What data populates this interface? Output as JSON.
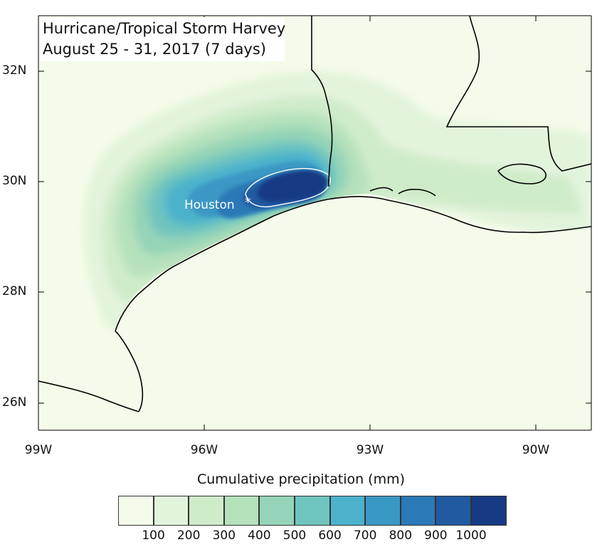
{
  "title": {
    "line1": "Hurricane/Tropical Storm Harvey",
    "line2": "August 25 - 31, 2017 (7 days)"
  },
  "map": {
    "region": "Texas / Louisiana Gulf Coast",
    "background_color": "#f5fbea",
    "ocean_color": "#f5fbea",
    "border_color": "#000000",
    "latitude_labels": [
      "32N",
      "30N",
      "28N",
      "26N"
    ],
    "longitude_labels": [
      "99W",
      "96W",
      "93W",
      "90W"
    ],
    "lon_range": [
      -99,
      -89
    ],
    "lat_range": [
      25.5,
      33
    ],
    "city": {
      "name": "Houston",
      "marker": "*",
      "lon": -95.4,
      "lat": 29.76
    }
  },
  "legend": {
    "title": "Cumulative precipitation (mm)",
    "ticks": [
      "100",
      "200",
      "300",
      "400",
      "500",
      "600",
      "700",
      "800",
      "900",
      "1000"
    ],
    "colors": [
      "#f5fbea",
      "#e3f4dc",
      "#cfecc9",
      "#b5e1bb",
      "#95d4b8",
      "#6fc4bf",
      "#4cb2cc",
      "#3a98c4",
      "#2b79b6",
      "#215aa0",
      "#173a84"
    ]
  }
}
